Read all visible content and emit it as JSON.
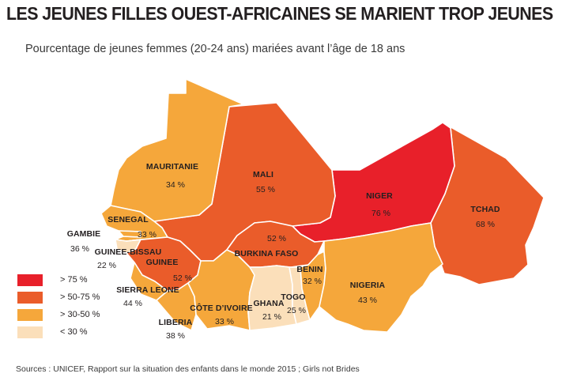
{
  "title": "LES JEUNES FILLES OUEST-AFRICAINES SE MARIENT TROP JEUNES",
  "subtitle": "Pourcentage de jeunes femmes (20-24 ans) mariées avant l’âge de 18 ans",
  "colors": {
    "gt75": "#e8202a",
    "gt50_75": "#ea5c2a",
    "gt30_50": "#f5a73b",
    "lt30": "#fbdfba",
    "ocean": "#ffffff"
  },
  "legend": [
    {
      "label": "> 75 %",
      "color_key": "gt75"
    },
    {
      "label": "> 50-75 %",
      "color_key": "gt50_75"
    },
    {
      "label": "> 30-50 %",
      "color_key": "gt30_50"
    },
    {
      "label": "< 30 %",
      "color_key": "lt30"
    }
  ],
  "countries": {
    "mauritanie": {
      "name": "MAURITANIE",
      "value": "34 %",
      "class": "gt30_50"
    },
    "mali": {
      "name": "MALI",
      "value": "55 %",
      "class": "gt50_75"
    },
    "niger": {
      "name": "NIGER",
      "value": "76 %",
      "class": "gt75"
    },
    "tchad": {
      "name": "TCHAD",
      "value": "68 %",
      "class": "gt50_75"
    },
    "senegal": {
      "name": "SENEGAL",
      "value": "33 %",
      "class": "gt30_50"
    },
    "gambie": {
      "name": "GAMBIE",
      "value": "36 %",
      "class": "gt30_50"
    },
    "guinee_bissau": {
      "name": "GUINEE-BISSAU",
      "value": "22 %",
      "class": "lt30"
    },
    "guinee": {
      "name": "GUINEE",
      "value": "52 %",
      "class": "gt50_75"
    },
    "burkina": {
      "name": "BURKINA FASO",
      "value": "52 %",
      "class": "gt50_75"
    },
    "benin": {
      "name": "BENIN",
      "value": "32 %",
      "class": "gt30_50"
    },
    "nigeria": {
      "name": "NIGERIA",
      "value": "43 %",
      "class": "gt30_50"
    },
    "sierra_leone": {
      "name": "SIERRA LEONE",
      "value": "44 %",
      "class": "gt30_50"
    },
    "cote_ivoire": {
      "name": "CÔTE D’IVOIRE",
      "value": "33 %",
      "class": "gt30_50"
    },
    "ghana": {
      "name": "GHANA",
      "value": "21 %",
      "class": "lt30"
    },
    "togo": {
      "name": "TOGO",
      "value": "25 %",
      "class": "lt30"
    },
    "liberia": {
      "name": "LIBERIA",
      "value": "38 %",
      "class": "gt30_50"
    }
  },
  "sources": "Sources : UNICEF, Rapport sur la situation des enfants dans le monde 2015 ; Girls not Brides"
}
